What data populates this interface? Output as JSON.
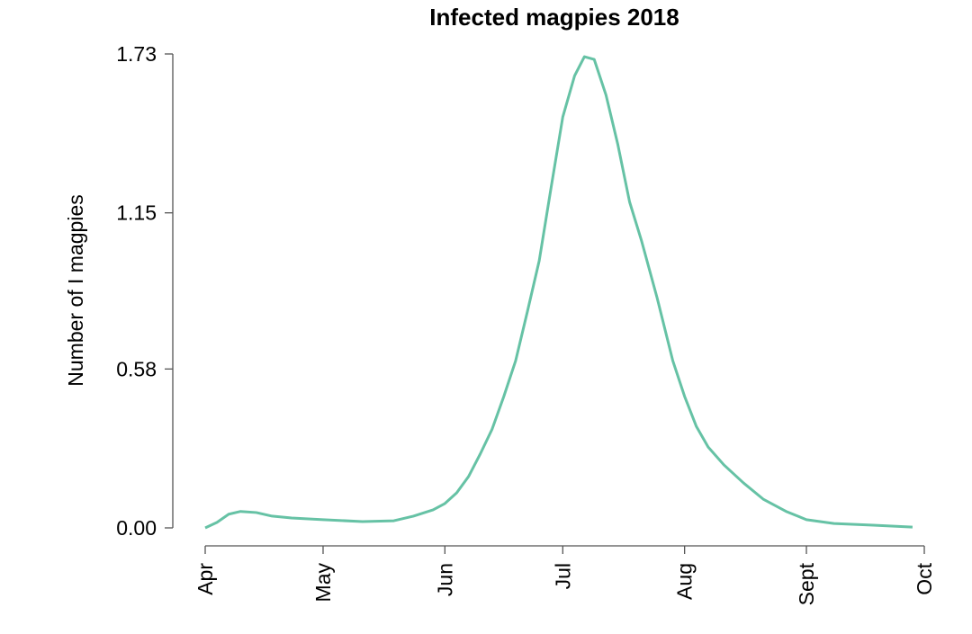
{
  "chart_data": {
    "type": "line",
    "title": "Infected magpies 2018",
    "ylabel": "Number of I magpies",
    "xlim": [
      0,
      183
    ],
    "xticks": [
      {
        "value": 0,
        "label": "Apr"
      },
      {
        "value": 30,
        "label": "May"
      },
      {
        "value": 61,
        "label": "Jun"
      },
      {
        "value": 91,
        "label": "Jul"
      },
      {
        "value": 122,
        "label": "Aug"
      },
      {
        "value": 153,
        "label": "Sept"
      },
      {
        "value": 183,
        "label": "Oct"
      }
    ],
    "ylim": [
      0,
      1.73
    ],
    "yticks": [
      {
        "value": 0,
        "label": "0.00"
      },
      0.58,
      1.15,
      1.73
    ],
    "x": [
      0,
      3,
      6,
      9,
      13,
      17,
      22,
      30,
      40,
      48,
      53,
      58,
      61,
      64,
      67,
      70,
      73,
      76,
      79,
      82,
      85,
      88,
      91,
      94,
      96.5,
      99,
      102,
      105,
      108,
      111,
      115,
      119,
      122,
      125,
      128,
      132,
      137,
      142,
      148,
      153,
      160,
      170,
      180
    ],
    "series": [
      {
        "color": "#66c2a5",
        "values": [
          0,
          0.02,
          0.05,
          0.06,
          0.056,
          0.043,
          0.036,
          0.03,
          0.023,
          0.026,
          0.043,
          0.066,
          0.089,
          0.128,
          0.187,
          0.27,
          0.36,
          0.48,
          0.61,
          0.79,
          0.975,
          1.24,
          1.5,
          1.65,
          1.72,
          1.71,
          1.58,
          1.4,
          1.19,
          1.05,
          0.84,
          0.61,
          0.48,
          0.37,
          0.295,
          0.23,
          0.164,
          0.105,
          0.059,
          0.03,
          0.016,
          0.01,
          0.003
        ]
      }
    ]
  }
}
